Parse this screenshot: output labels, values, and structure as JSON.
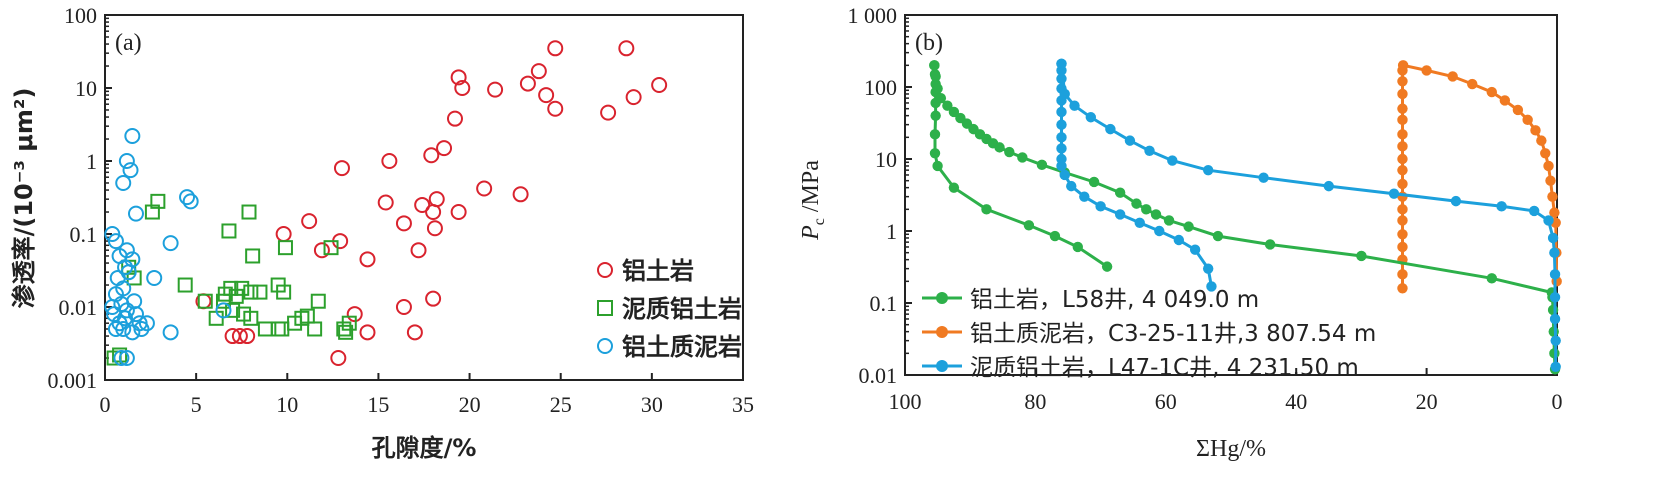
{
  "chart_data": [
    {
      "panel_label": "(a)",
      "type": "scatter",
      "xlabel": "孔隙度/%",
      "ylabel": "渗透率/(10⁻³ μm²)",
      "xlim": [
        0,
        35
      ],
      "ylim": [
        0.001,
        100
      ],
      "yscale": "log",
      "x_ticks": [
        "0",
        "5",
        "10",
        "15",
        "20",
        "25",
        "30",
        "35"
      ],
      "y_ticks": [
        "0.001",
        "0.01",
        "0.1",
        "1",
        "10",
        "100"
      ],
      "legend_position": "lower-right",
      "series": [
        {
          "name": "铝土岩",
          "marker": "circle",
          "color": "#d9232e",
          "points": [
            [
              24.7,
              35
            ],
            [
              28.6,
              35
            ],
            [
              19.4,
              14
            ],
            [
              23.8,
              17
            ],
            [
              19.6,
              10
            ],
            [
              21.4,
              9.5
            ],
            [
              23.2,
              11.5
            ],
            [
              24.2,
              8
            ],
            [
              30.4,
              11
            ],
            [
              29.0,
              7.5
            ],
            [
              24.7,
              5.2
            ],
            [
              27.6,
              4.6
            ],
            [
              19.2,
              3.8
            ],
            [
              18.6,
              1.5
            ],
            [
              17.9,
              1.2
            ],
            [
              15.6,
              1.0
            ],
            [
              13.0,
              0.8
            ],
            [
              20.8,
              0.42
            ],
            [
              22.8,
              0.35
            ],
            [
              18.2,
              0.3
            ],
            [
              15.4,
              0.27
            ],
            [
              17.4,
              0.25
            ],
            [
              18.0,
              0.2
            ],
            [
              19.4,
              0.2
            ],
            [
              11.2,
              0.15
            ],
            [
              16.4,
              0.14
            ],
            [
              18.1,
              0.12
            ],
            [
              9.8,
              0.1
            ],
            [
              12.9,
              0.08
            ],
            [
              11.9,
              0.06
            ],
            [
              17.2,
              0.06
            ],
            [
              14.4,
              0.045
            ],
            [
              18.0,
              0.013
            ],
            [
              16.4,
              0.01
            ],
            [
              5.4,
              0.012
            ],
            [
              13.7,
              0.008
            ],
            [
              7.0,
              0.004
            ],
            [
              7.4,
              0.004
            ],
            [
              7.8,
              0.004
            ],
            [
              14.4,
              0.0045
            ],
            [
              17.0,
              0.0045
            ],
            [
              12.8,
              0.002
            ]
          ]
        },
        {
          "name": "泥质铝土岩",
          "marker": "square",
          "color": "#2ca02c",
          "points": [
            [
              2.9,
              0.28
            ],
            [
              2.6,
              0.2
            ],
            [
              7.9,
              0.2
            ],
            [
              6.8,
              0.11
            ],
            [
              9.9,
              0.065
            ],
            [
              12.4,
              0.065
            ],
            [
              8.1,
              0.05
            ],
            [
              1.3,
              0.035
            ],
            [
              1.6,
              0.025
            ],
            [
              4.4,
              0.02
            ],
            [
              6.9,
              0.018
            ],
            [
              7.5,
              0.018
            ],
            [
              9.5,
              0.02
            ],
            [
              6.6,
              0.015
            ],
            [
              7.2,
              0.014
            ],
            [
              8.0,
              0.016
            ],
            [
              8.5,
              0.016
            ],
            [
              9.8,
              0.016
            ],
            [
              5.5,
              0.012
            ],
            [
              6.5,
              0.012
            ],
            [
              11.7,
              0.012
            ],
            [
              7.0,
              0.009
            ],
            [
              7.6,
              0.008
            ],
            [
              6.1,
              0.007
            ],
            [
              8.0,
              0.007
            ],
            [
              10.4,
              0.006
            ],
            [
              10.8,
              0.007
            ],
            [
              11.1,
              0.0075
            ],
            [
              13.4,
              0.006
            ],
            [
              8.8,
              0.005
            ],
            [
              9.5,
              0.005
            ],
            [
              9.7,
              0.005
            ],
            [
              11.5,
              0.005
            ],
            [
              13.1,
              0.005
            ],
            [
              13.2,
              0.0045
            ],
            [
              0.5,
              0.002
            ],
            [
              0.8,
              0.0022
            ]
          ]
        },
        {
          "name": "铝土质泥岩",
          "marker": "circle",
          "color": "#1ca0dc",
          "points": [
            [
              1.5,
              2.2
            ],
            [
              1.2,
              1.0
            ],
            [
              1.4,
              0.75
            ],
            [
              1.0,
              0.5
            ],
            [
              4.5,
              0.32
            ],
            [
              4.7,
              0.28
            ],
            [
              1.7,
              0.19
            ],
            [
              0.4,
              0.1
            ],
            [
              0.6,
              0.08
            ],
            [
              3.6,
              0.075
            ],
            [
              0.8,
              0.05
            ],
            [
              1.2,
              0.06
            ],
            [
              1.5,
              0.045
            ],
            [
              1.1,
              0.035
            ],
            [
              1.3,
              0.03
            ],
            [
              0.7,
              0.025
            ],
            [
              2.7,
              0.025
            ],
            [
              0.6,
              0.015
            ],
            [
              1.0,
              0.018
            ],
            [
              1.6,
              0.012
            ],
            [
              0.4,
              0.01
            ],
            [
              0.9,
              0.011
            ],
            [
              1.2,
              0.009
            ],
            [
              0.5,
              0.008
            ],
            [
              1.7,
              0.008
            ],
            [
              6.5,
              0.009
            ],
            [
              0.8,
              0.006
            ],
            [
              1.1,
              0.007
            ],
            [
              1.9,
              0.006
            ],
            [
              2.3,
              0.006
            ],
            [
              0.6,
              0.005
            ],
            [
              1.0,
              0.005
            ],
            [
              1.5,
              0.0045
            ],
            [
              2.0,
              0.005
            ],
            [
              3.6,
              0.0045
            ],
            [
              0.9,
              0.002
            ],
            [
              1.2,
              0.002
            ]
          ]
        }
      ]
    },
    {
      "panel_label": "(b)",
      "type": "line",
      "xlabel": "ΣHg/%",
      "ylabel_main": "P",
      "ylabel_sub": "c",
      "ylabel_rest": " /MPa",
      "xlim": [
        100,
        0
      ],
      "ylim": [
        0.01,
        1000
      ],
      "yscale": "log",
      "x_ticks": [
        "100",
        "80",
        "60",
        "40",
        "20",
        "0"
      ],
      "y_ticks": [
        "0.01",
        "0.1",
        "1",
        "10",
        "100",
        "1 000"
      ],
      "legend_position": "lower-left",
      "series": [
        {
          "name": "铝土岩，L58井, 4 049.0 m",
          "color": "#2db04a",
          "marker": "circle",
          "points": [
            [
              95.5,
              200
            ],
            [
              95.4,
              150
            ],
            [
              95.3,
              110
            ],
            [
              95.3,
              85
            ],
            [
              95.3,
              60
            ],
            [
              95.3,
              40
            ],
            [
              95.4,
              22
            ],
            [
              95.4,
              12
            ],
            [
              95.0,
              8
            ],
            [
              92.5,
              4
            ],
            [
              87.5,
              2
            ],
            [
              81.0,
              1.2
            ],
            [
              77.0,
              0.85
            ],
            [
              73.5,
              0.6
            ],
            [
              69.0,
              0.32
            ]
          ]
        },
        {
          "name": "",
          "color": "#2db04a",
          "marker": "circle",
          "points": [
            [
              95.5,
              200
            ],
            [
              95.3,
              140
            ],
            [
              95.0,
              95
            ],
            [
              94.5,
              70
            ],
            [
              93.5,
              55
            ],
            [
              92.5,
              45
            ],
            [
              91.5,
              37
            ],
            [
              90.5,
              31
            ],
            [
              89.5,
              26
            ],
            [
              88.5,
              22
            ],
            [
              87.5,
              19
            ],
            [
              86.5,
              16.5
            ],
            [
              85.5,
              14.5
            ],
            [
              84.0,
              12.5
            ],
            [
              82.0,
              10.5
            ],
            [
              79.0,
              8.3
            ],
            [
              75.5,
              6.5
            ],
            [
              71.0,
              4.8
            ],
            [
              67.0,
              3.4
            ],
            [
              64.5,
              2.4
            ],
            [
              63.0,
              2.0
            ],
            [
              61.5,
              1.7
            ],
            [
              59.5,
              1.4
            ],
            [
              56.5,
              1.15
            ],
            [
              52.0,
              0.85
            ],
            [
              44.0,
              0.65
            ],
            [
              30.0,
              0.45
            ],
            [
              10.0,
              0.22
            ],
            [
              0.8,
              0.14
            ],
            [
              0.7,
              0.12
            ],
            [
              0.6,
              0.08
            ],
            [
              0.5,
              0.04
            ],
            [
              0.4,
              0.02
            ],
            [
              0.3,
              0.012
            ]
          ]
        },
        {
          "name": "铝土质泥岩，C3-25-11井,3 807.54 m",
          "color": "#f07a22",
          "marker": "circle",
          "points": [
            [
              23.7,
              0.16
            ],
            [
              23.7,
              0.25
            ],
            [
              23.7,
              0.4
            ],
            [
              23.7,
              0.6
            ],
            [
              23.7,
              0.9
            ],
            [
              23.7,
              1.4
            ],
            [
              23.7,
              2
            ],
            [
              23.7,
              3
            ],
            [
              23.7,
              4.5
            ],
            [
              23.7,
              7
            ],
            [
              23.7,
              10
            ],
            [
              23.7,
              15
            ],
            [
              23.7,
              22
            ],
            [
              23.7,
              35
            ],
            [
              23.7,
              50
            ],
            [
              23.7,
              80
            ],
            [
              23.7,
              120
            ],
            [
              23.7,
              170
            ],
            [
              23.6,
              200
            ],
            [
              20.0,
              170
            ],
            [
              16.0,
              140
            ],
            [
              13.0,
              110
            ],
            [
              10.0,
              85
            ],
            [
              8.0,
              65
            ],
            [
              6.0,
              48
            ],
            [
              4.5,
              35
            ],
            [
              3.3,
              25
            ],
            [
              2.4,
              18
            ],
            [
              1.8,
              12
            ],
            [
              1.3,
              8
            ],
            [
              1.0,
              5
            ],
            [
              0.7,
              3
            ],
            [
              0.4,
              1.8
            ],
            [
              0.2,
              1.3
            ],
            [
              0.1,
              0.5
            ],
            [
              0.05,
              0.2
            ]
          ]
        },
        {
          "name": "泥质铝土岩，L47-1C井, 4 231.50 m",
          "color": "#1ca0dc",
          "marker": "circle",
          "points": [
            [
              76.0,
              210
            ],
            [
              76.0,
              170
            ],
            [
              76.0,
              130
            ],
            [
              76.0,
              95
            ],
            [
              76.0,
              65
            ],
            [
              76.0,
              45
            ],
            [
              76.0,
              30
            ],
            [
              76.0,
              20
            ],
            [
              76.0,
              14
            ],
            [
              76.0,
              10
            ],
            [
              76.0,
              8
            ],
            [
              75.5,
              6
            ],
            [
              74.5,
              4.2
            ],
            [
              72.5,
              3.0
            ],
            [
              70.0,
              2.2
            ],
            [
              67.0,
              1.7
            ],
            [
              64.0,
              1.3
            ],
            [
              61.0,
              1.0
            ],
            [
              58.0,
              0.75
            ],
            [
              55.5,
              0.55
            ],
            [
              53.5,
              0.3
            ],
            [
              53.0,
              0.17
            ]
          ]
        },
        {
          "name": "",
          "color": "#1ca0dc",
          "marker": "circle",
          "points": [
            [
              76.0,
              210
            ],
            [
              75.5,
              80
            ],
            [
              74.0,
              55
            ],
            [
              71.5,
              38
            ],
            [
              68.5,
              26
            ],
            [
              65.5,
              18
            ],
            [
              62.5,
              13
            ],
            [
              59.0,
              9.5
            ],
            [
              53.5,
              7
            ],
            [
              45.0,
              5.5
            ],
            [
              35.0,
              4.2
            ],
            [
              25.0,
              3.3
            ],
            [
              15.5,
              2.6
            ],
            [
              8.5,
              2.2
            ],
            [
              3.5,
              1.9
            ],
            [
              1.3,
              1.4
            ],
            [
              0.6,
              0.8
            ],
            [
              0.4,
              0.5
            ],
            [
              0.3,
              0.25
            ],
            [
              0.3,
              0.12
            ],
            [
              0.3,
              0.06
            ],
            [
              0.2,
              0.03
            ],
            [
              0.2,
              0.013
            ]
          ]
        }
      ]
    }
  ]
}
